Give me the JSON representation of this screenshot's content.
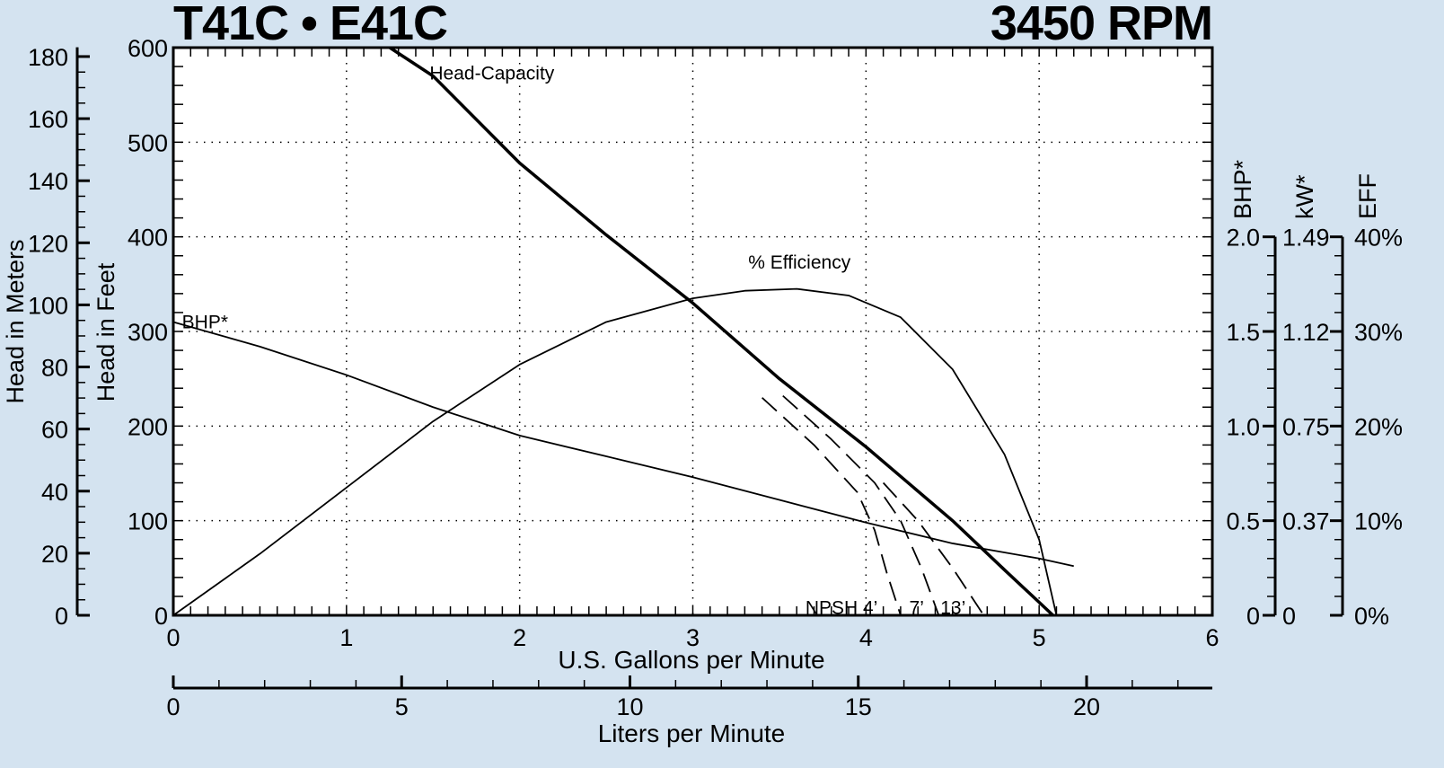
{
  "header": {
    "model": "T41C • E41C",
    "speed": "3450 RPM"
  },
  "chart_data": {
    "type": "line",
    "title": "T41C • E41C",
    "subtitle": "3450 RPM",
    "xlabel": "U.S. Gallons per Minute",
    "xlabel_secondary": "Liters per Minute",
    "ylabel": "Head in Feet",
    "ylabel_secondary": "Head in Meters",
    "xlim": [
      0,
      6
    ],
    "ylim": [
      0,
      600
    ],
    "grid": true,
    "x_ticks": [
      "0",
      "1",
      "2",
      "3",
      "4",
      "5",
      "6"
    ],
    "y_ticks": [
      "0",
      "100",
      "200",
      "300",
      "400",
      "500",
      "600"
    ],
    "meters_ticks": [
      "0",
      "20",
      "40",
      "60",
      "80",
      "100",
      "120",
      "140",
      "160",
      "180"
    ],
    "liters_ticks": [
      "0",
      "5",
      "10",
      "15",
      "20"
    ],
    "right_axes": [
      {
        "label": "BHP*",
        "ticks": [
          "0",
          "0.5",
          "1.0",
          "1.5",
          "2.0"
        ]
      },
      {
        "label": "kW*",
        "ticks": [
          "0",
          "0.37",
          "0.75",
          "1.12",
          "1.49"
        ]
      },
      {
        "label": "EFF",
        "ticks": [
          "0%",
          "10%",
          "20%",
          "30%",
          "40%"
        ]
      }
    ],
    "series": [
      {
        "name": "Head-Capacity",
        "unit": "ft",
        "style": "thick",
        "x": [
          1.25,
          1.5,
          2.0,
          2.5,
          3.0,
          3.5,
          4.0,
          4.5,
          4.8,
          5.08
        ],
        "y": [
          600,
          570,
          478,
          402,
          330,
          250,
          178,
          100,
          48,
          0
        ]
      },
      {
        "name": "BHP*",
        "unit": "hp",
        "style": "thin",
        "x": [
          0,
          0.5,
          1.0,
          1.5,
          2.0,
          2.5,
          3.0,
          3.5,
          4.0,
          4.5,
          5.0,
          5.2
        ],
        "y": [
          1.55,
          1.42,
          1.27,
          1.1,
          0.95,
          0.84,
          0.73,
          0.61,
          0.49,
          0.38,
          0.3,
          0.26
        ]
      },
      {
        "name": "% Efficiency",
        "unit": "%",
        "style": "thin",
        "x": [
          0,
          0.5,
          1.0,
          1.5,
          2.0,
          2.5,
          3.0,
          3.3,
          3.6,
          3.9,
          4.2,
          4.5,
          4.8,
          5.0,
          5.1
        ],
        "y": [
          0,
          6.5,
          13.5,
          20.5,
          26.5,
          31,
          33.5,
          34.3,
          34.5,
          33.8,
          31.5,
          26,
          17,
          8,
          0
        ]
      },
      {
        "name": "NPSH 4'",
        "unit": "ft",
        "style": "dashed",
        "x": [
          3.4,
          3.7,
          3.95,
          4.05,
          4.12,
          4.2
        ],
        "y": [
          230,
          180,
          130,
          90,
          45,
          0
        ]
      },
      {
        "name": "NPSH 7'",
        "unit": "ft",
        "style": "dashed",
        "x": [
          3.52,
          3.8,
          4.05,
          4.2,
          4.32,
          4.42
        ],
        "y": [
          232,
          186,
          140,
          100,
          50,
          0
        ]
      },
      {
        "name": "NPSH 13'",
        "unit": "ft",
        "style": "dashed",
        "x": [
          4.1,
          4.3,
          4.5,
          4.68
        ],
        "y": [
          140,
          100,
          50,
          0
        ]
      }
    ],
    "annotations": [
      {
        "text": "Head-Capacity",
        "x": 1.48,
        "y": 575
      },
      {
        "text": "% Efficiency",
        "x": 3.32,
        "y": 375
      },
      {
        "text": "BHP*",
        "x": 0.05,
        "y": 312
      },
      {
        "text": "NPSH 4’",
        "x": 3.65,
        "y": 10
      },
      {
        "text": "7’",
        "x": 4.25,
        "y": 10
      },
      {
        "text": "13’",
        "x": 4.43,
        "y": 10
      }
    ]
  }
}
